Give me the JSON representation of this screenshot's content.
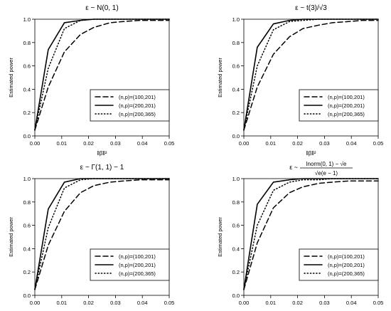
{
  "chart_data": [
    {
      "type": "line",
      "title": "ε ~ N(0, 1)",
      "xlabel": "‖β‖²",
      "ylabel": "Estimated power",
      "xlim": [
        0,
        0.05
      ],
      "ylim": [
        0,
        1
      ],
      "xticks": [
        "0.00",
        "0.01",
        "0.02",
        "0.03",
        "0.04",
        "0.05"
      ],
      "yticks": [
        "0.0",
        "0.2",
        "0.4",
        "0.6",
        "0.8",
        "1.0"
      ],
      "x": [
        0,
        0.005,
        0.011,
        0.017,
        0.022,
        0.028,
        0.033,
        0.039,
        0.044,
        0.05
      ],
      "legend_position": "bottom-right",
      "grid": false,
      "series": [
        {
          "name": "(n,p)=(100,201)",
          "style": "dashed",
          "values": [
            0.05,
            0.42,
            0.72,
            0.87,
            0.93,
            0.97,
            0.98,
            0.99,
            0.99,
            0.99
          ]
        },
        {
          "name": "(n,p)=(200,201)",
          "style": "solid",
          "values": [
            0.05,
            0.74,
            0.97,
            0.99,
            1.0,
            1.0,
            1.0,
            1.0,
            1.0,
            1.0
          ]
        },
        {
          "name": "(n,p)=(200,365)",
          "style": "dotted",
          "values": [
            0.05,
            0.58,
            0.92,
            0.99,
            1.0,
            1.0,
            1.0,
            1.0,
            1.0,
            1.0
          ]
        }
      ]
    },
    {
      "type": "line",
      "title": "ε ~ t(3)/√3",
      "xlabel": "‖β‖²",
      "ylabel": "Estimated power",
      "xlim": [
        0,
        0.05
      ],
      "ylim": [
        0,
        1
      ],
      "xticks": [
        "0.00",
        "0.01",
        "0.02",
        "0.03",
        "0.04",
        "0.05"
      ],
      "yticks": [
        "0.0",
        "0.2",
        "0.4",
        "0.6",
        "0.8",
        "1.0"
      ],
      "x": [
        0,
        0.005,
        0.011,
        0.017,
        0.022,
        0.028,
        0.033,
        0.039,
        0.044,
        0.05
      ],
      "legend_position": "bottom-right",
      "grid": false,
      "series": [
        {
          "name": "(n,p)=(100,201)",
          "style": "dashed",
          "values": [
            0.05,
            0.42,
            0.7,
            0.85,
            0.92,
            0.95,
            0.97,
            0.98,
            0.99,
            0.99
          ]
        },
        {
          "name": "(n,p)=(200,201)",
          "style": "solid",
          "values": [
            0.05,
            0.76,
            0.96,
            0.99,
            1.0,
            1.0,
            1.0,
            1.0,
            1.0,
            1.0
          ]
        },
        {
          "name": "(n,p)=(200,365)",
          "style": "dotted",
          "values": [
            0.05,
            0.6,
            0.91,
            0.98,
            0.99,
            1.0,
            1.0,
            1.0,
            1.0,
            1.0
          ]
        }
      ]
    },
    {
      "type": "line",
      "title": "ε ~ Γ(1, 1) − 1",
      "xlabel": "‖β‖²",
      "ylabel": "Estimated power",
      "xlim": [
        0,
        0.05
      ],
      "ylim": [
        0,
        1
      ],
      "xticks": [
        "0.00",
        "0.01",
        "0.02",
        "0.03",
        "0.04",
        "0.05"
      ],
      "yticks": [
        "0.0",
        "0.2",
        "0.4",
        "0.6",
        "0.8",
        "1.0"
      ],
      "x": [
        0,
        0.005,
        0.011,
        0.017,
        0.022,
        0.028,
        0.033,
        0.039,
        0.044,
        0.05
      ],
      "legend_position": "bottom-right",
      "grid": false,
      "series": [
        {
          "name": "(n,p)=(100,201)",
          "style": "dashed",
          "values": [
            0.05,
            0.43,
            0.72,
            0.88,
            0.94,
            0.97,
            0.98,
            0.99,
            0.99,
            0.99
          ]
        },
        {
          "name": "(n,p)=(200,201)",
          "style": "solid",
          "values": [
            0.05,
            0.74,
            0.97,
            1.0,
            1.0,
            1.0,
            1.0,
            1.0,
            1.0,
            1.0
          ]
        },
        {
          "name": "(n,p)=(200,365)",
          "style": "dotted",
          "values": [
            0.05,
            0.58,
            0.92,
            0.99,
            1.0,
            1.0,
            1.0,
            1.0,
            1.0,
            1.0
          ]
        }
      ]
    },
    {
      "type": "line",
      "title_lead": "ε ~",
      "title_numerator": "lnorm(0, 1) − √e",
      "title_denominator": "√e(e − 1)",
      "xlabel": "‖β‖²",
      "ylabel": "Estimated power",
      "xlim": [
        0,
        0.05
      ],
      "ylim": [
        0,
        1
      ],
      "xticks": [
        "0.00",
        "0.01",
        "0.02",
        "0.03",
        "0.04",
        "0.05"
      ],
      "yticks": [
        "0.0",
        "0.2",
        "0.4",
        "0.6",
        "0.8",
        "1.0"
      ],
      "x": [
        0,
        0.005,
        0.011,
        0.017,
        0.022,
        0.028,
        0.033,
        0.039,
        0.044,
        0.05
      ],
      "legend_position": "bottom-right",
      "grid": false,
      "series": [
        {
          "name": "(n,p)=(100,201)",
          "style": "dashed",
          "values": [
            0.05,
            0.45,
            0.75,
            0.88,
            0.93,
            0.96,
            0.97,
            0.98,
            0.98,
            0.98
          ]
        },
        {
          "name": "(n,p)=(200,201)",
          "style": "solid",
          "values": [
            0.05,
            0.78,
            0.97,
            0.99,
            1.0,
            1.0,
            1.0,
            1.0,
            1.0,
            1.0
          ]
        },
        {
          "name": "(n,p)=(200,365)",
          "style": "dotted",
          "values": [
            0.05,
            0.6,
            0.9,
            0.97,
            0.99,
            0.99,
            1.0,
            1.0,
            1.0,
            1.0
          ]
        }
      ]
    }
  ]
}
